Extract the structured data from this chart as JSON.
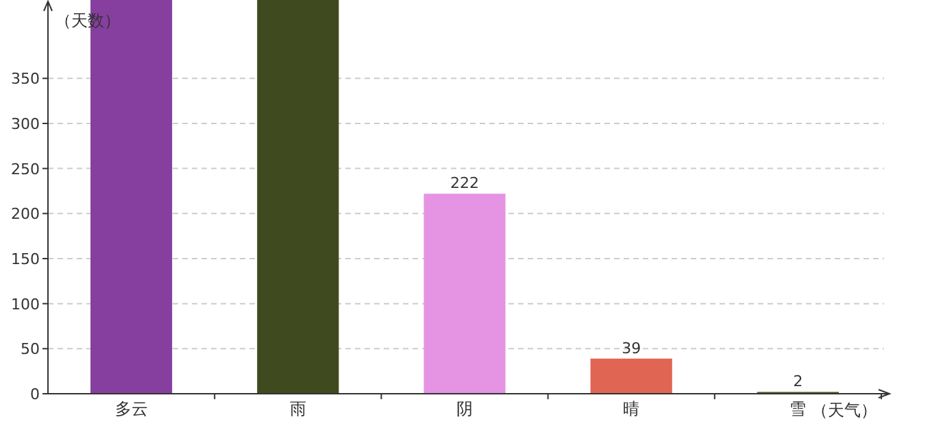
{
  "chart_data": {
    "type": "bar",
    "ylabel": "（天数）",
    "xlabel": "（天气）",
    "categories": [
      "多云",
      "雨",
      "阴",
      "晴",
      "雪"
    ],
    "values": [
      437,
      437,
      222,
      39,
      2
    ],
    "value_labels": [
      null,
      null,
      "222",
      "39",
      "2"
    ],
    "colors": [
      "#873f9f",
      "#3f4a1e",
      "#e494e3",
      "#e06553",
      "#4e5a2c"
    ],
    "ylim": [
      0,
      437
    ],
    "yticks": [
      0,
      50,
      100,
      150,
      200,
      250,
      300,
      350
    ],
    "grid": "y"
  }
}
